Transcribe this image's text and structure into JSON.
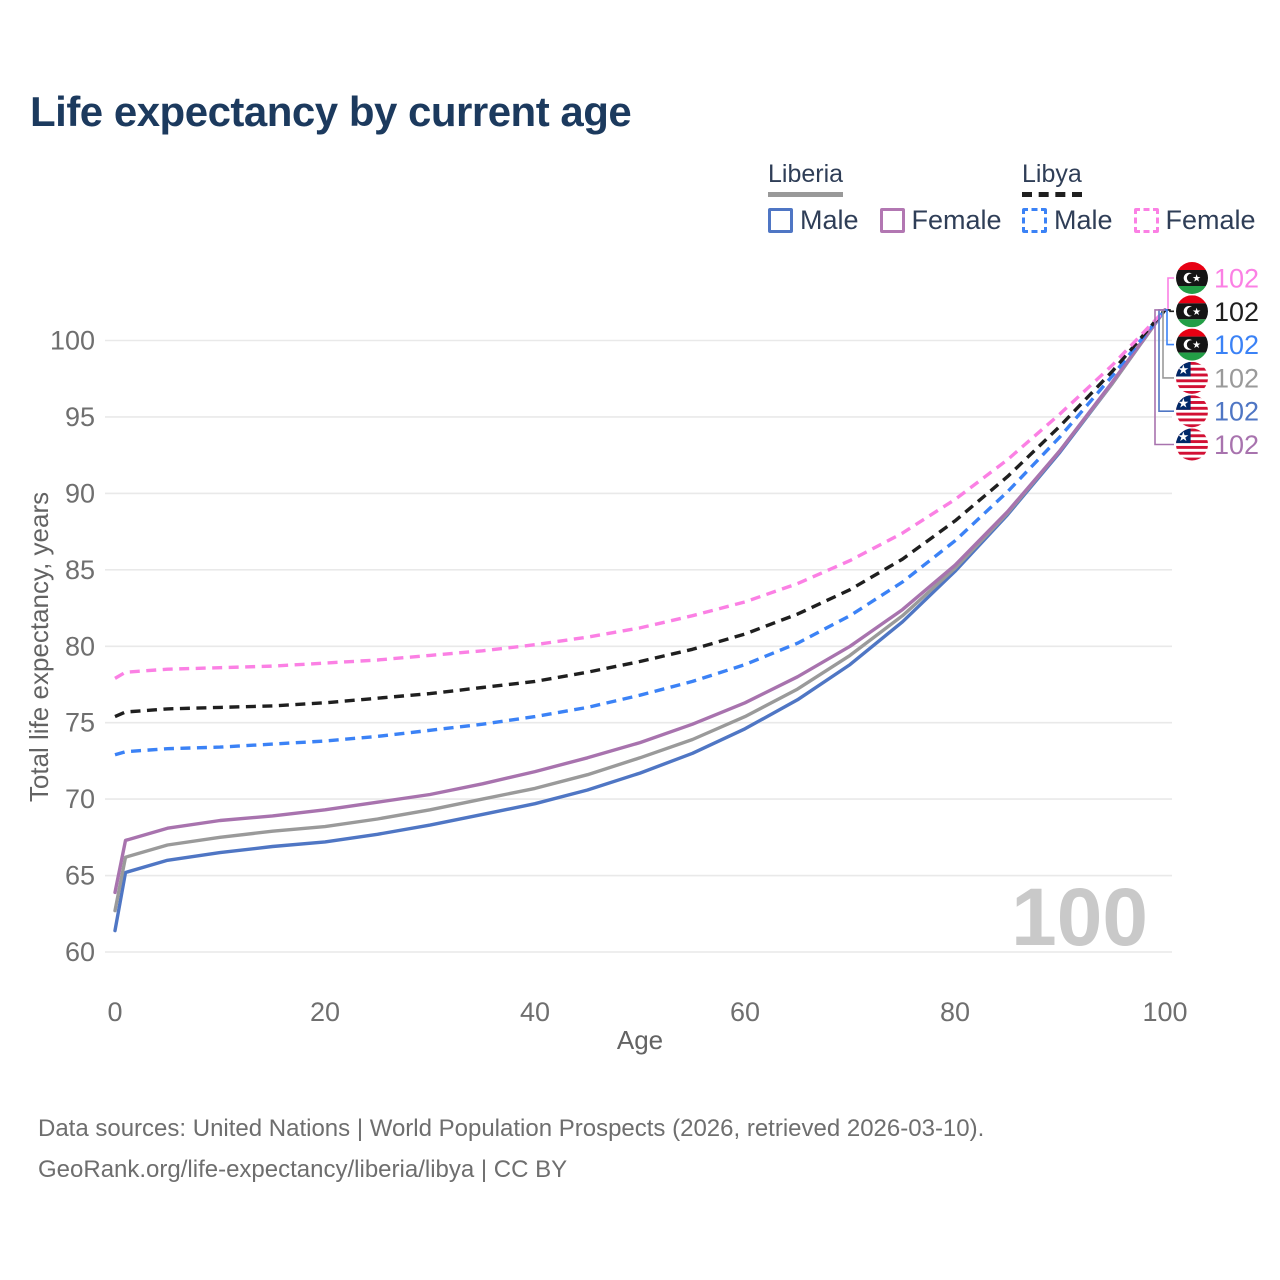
{
  "title": "Life expectancy by current age",
  "watermark": "100",
  "legend": {
    "groups": [
      {
        "label": "Liberia",
        "line_style": "solid",
        "underline_color": "#999999",
        "items": [
          {
            "label": "Male",
            "color": "#4f76c4"
          },
          {
            "label": "Female",
            "color": "#b277b2"
          }
        ]
      },
      {
        "label": "Libya",
        "line_style": "dashed",
        "underline_color": "#1f1f1f",
        "items": [
          {
            "label": "Male",
            "color": "#3b82f6"
          },
          {
            "label": "Female",
            "color": "#fb80e4"
          }
        ]
      }
    ]
  },
  "chart_data": {
    "type": "line",
    "title": "Life expectancy by current age",
    "xlabel": "Age",
    "ylabel": "Total life expectancy, years",
    "xlim": [
      0,
      100
    ],
    "ylim": [
      60,
      103
    ],
    "x_ticks": [
      0,
      20,
      40,
      60,
      80,
      100
    ],
    "y_ticks": [
      60,
      65,
      70,
      75,
      80,
      85,
      90,
      95,
      100
    ],
    "grid": "horizontal only, light gray",
    "legend_position": "top-right",
    "x": [
      0,
      1,
      5,
      10,
      15,
      20,
      25,
      30,
      35,
      40,
      45,
      50,
      55,
      60,
      65,
      70,
      75,
      80,
      85,
      90,
      95,
      100
    ],
    "series": [
      {
        "name": "Liberia Male",
        "country": "Liberia",
        "sex": "Male",
        "color": "#4f76c4",
        "dashed": false,
        "values": [
          61.4,
          65.2,
          66.0,
          66.5,
          66.9,
          67.2,
          67.7,
          68.3,
          69.0,
          69.7,
          70.6,
          71.7,
          73.0,
          74.6,
          76.5,
          78.8,
          81.6,
          84.9,
          88.6,
          92.7,
          97.2,
          102
        ]
      },
      {
        "name": "Liberia Both sexes",
        "country": "Liberia",
        "sex": "Both sexes",
        "color": "#9a9a9a",
        "dashed": false,
        "values": [
          62.7,
          66.2,
          67.0,
          67.5,
          67.9,
          68.2,
          68.7,
          69.3,
          70.0,
          70.7,
          71.6,
          72.7,
          73.9,
          75.4,
          77.2,
          79.4,
          82.0,
          85.1,
          88.7,
          92.8,
          97.2,
          102
        ]
      },
      {
        "name": "Liberia Female",
        "country": "Liberia",
        "sex": "Female",
        "color": "#a873ae",
        "dashed": false,
        "values": [
          63.9,
          67.3,
          68.1,
          68.6,
          68.9,
          69.3,
          69.8,
          70.3,
          71.0,
          71.8,
          72.7,
          73.7,
          74.9,
          76.3,
          78.0,
          80.0,
          82.4,
          85.3,
          88.8,
          92.8,
          97.3,
          102
        ]
      },
      {
        "name": "Libya Male",
        "country": "Libya",
        "sex": "Male",
        "color": "#3b82f6",
        "dashed": true,
        "values": [
          72.9,
          73.1,
          73.3,
          73.4,
          73.6,
          73.8,
          74.1,
          74.5,
          74.9,
          75.4,
          76.0,
          76.8,
          77.7,
          78.8,
          80.2,
          82.0,
          84.2,
          86.9,
          90.1,
          93.7,
          97.7,
          102
        ]
      },
      {
        "name": "Libya Both sexes",
        "country": "Libya",
        "sex": "Both sexes",
        "color": "#1f1f1f",
        "dashed": true,
        "values": [
          75.4,
          75.7,
          75.9,
          76.0,
          76.1,
          76.3,
          76.6,
          76.9,
          77.3,
          77.7,
          78.3,
          79.0,
          79.8,
          80.8,
          82.1,
          83.7,
          85.7,
          88.2,
          91.1,
          94.4,
          98.0,
          102
        ]
      },
      {
        "name": "Libya Female",
        "country": "Libya",
        "sex": "Female",
        "color": "#fb80e4",
        "dashed": true,
        "values": [
          77.9,
          78.3,
          78.5,
          78.6,
          78.7,
          78.9,
          79.1,
          79.4,
          79.7,
          80.1,
          80.6,
          81.2,
          82.0,
          82.9,
          84.1,
          85.6,
          87.4,
          89.6,
          92.2,
          95.2,
          98.4,
          102
        ]
      }
    ],
    "end_labels": [
      {
        "series": "Libya Female",
        "flag": "libya",
        "value": "102",
        "color": "#fb80e4"
      },
      {
        "series": "Libya Both sexes",
        "flag": "libya",
        "value": "102",
        "color": "#1f1f1f"
      },
      {
        "series": "Libya Male",
        "flag": "libya",
        "value": "102",
        "color": "#3b82f6"
      },
      {
        "series": "Liberia Both sexes",
        "flag": "liberia",
        "value": "102",
        "color": "#9a9a9a"
      },
      {
        "series": "Liberia Male",
        "flag": "liberia",
        "value": "102",
        "color": "#4f76c4"
      },
      {
        "series": "Liberia Female",
        "flag": "liberia",
        "value": "102",
        "color": "#a873ae"
      }
    ],
    "flag_colors": {
      "libya": {
        "red": "#e70013",
        "black": "#151515",
        "green": "#239e46",
        "emblem": "#ffffff"
      },
      "liberia": {
        "red": "#d21034",
        "white": "#ffffff",
        "canton_blue": "#002868",
        "star": "#ffffff"
      }
    }
  },
  "footer": {
    "line1": "Data sources: United Nations | World Population Prospects (2026, retrieved 2026-03-10).",
    "line2": "GeoRank.org/life-expectancy/liberia/libya | CC BY"
  }
}
